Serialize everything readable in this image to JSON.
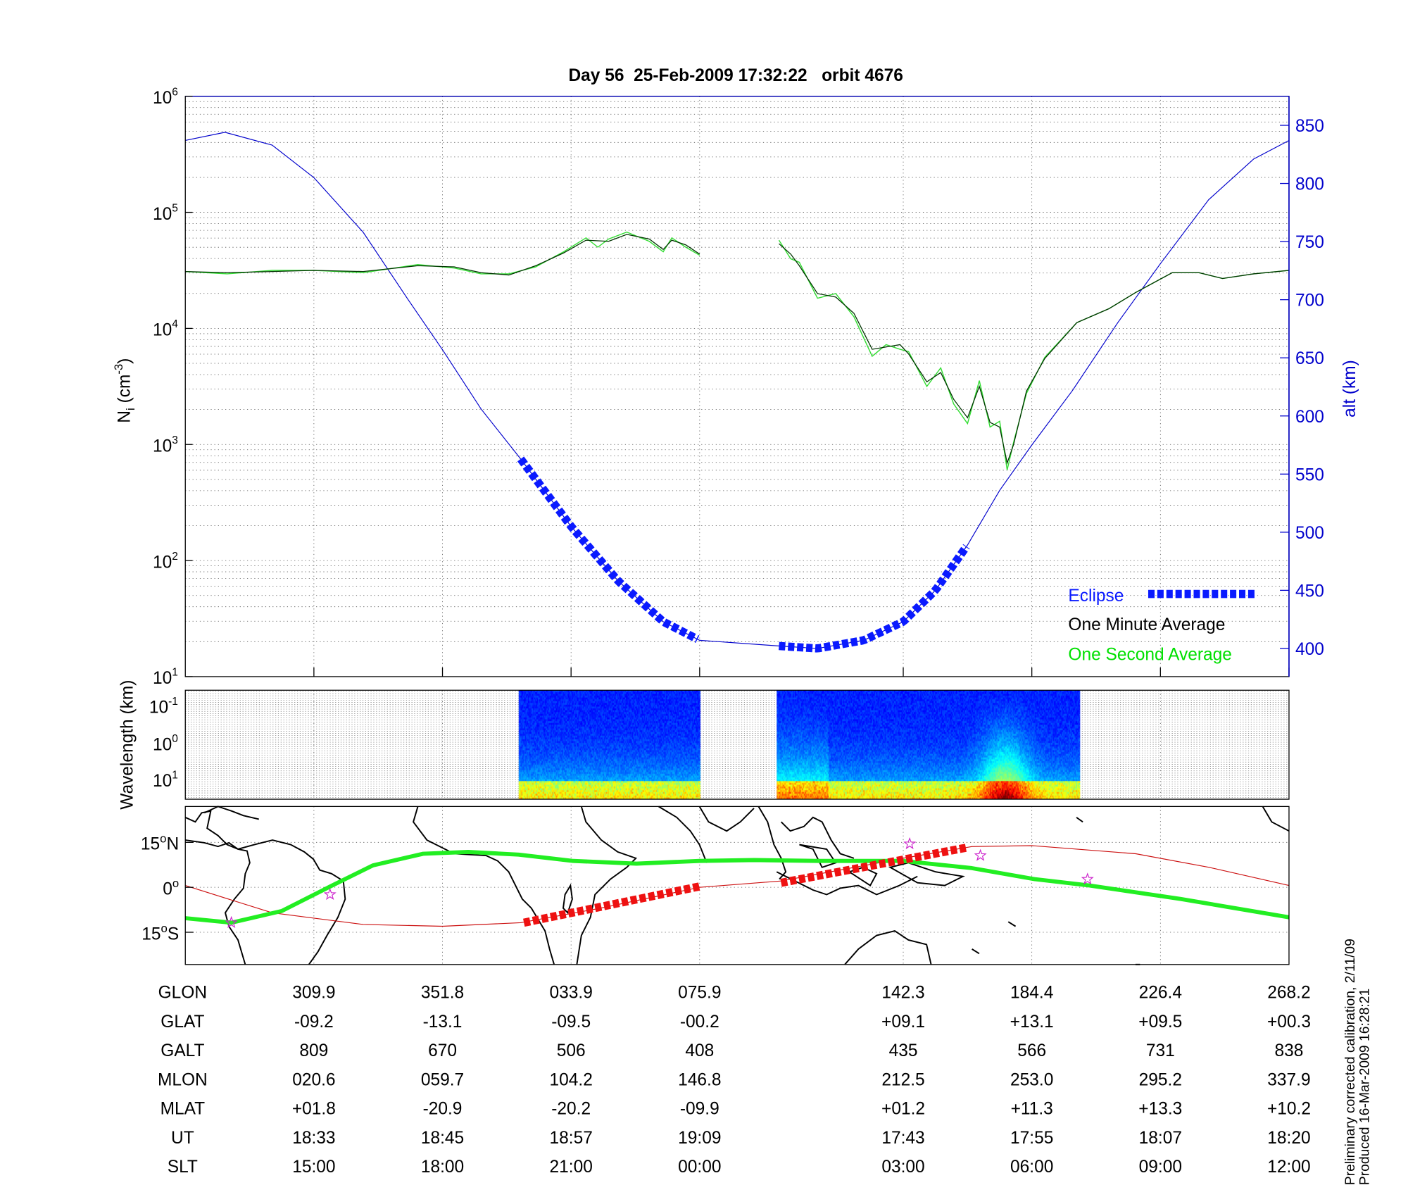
{
  "chart_data": [
    {
      "type": "line",
      "title": "Day 56  25-Feb-2009 17:32:22   orbit 4676",
      "xlabel": "",
      "x_units": "minutes along plotted orbit",
      "xlim": [
        0,
        103
      ],
      "ylabel": {
        "base": "N",
        "sub": "i",
        "mid": " (cm",
        "sup": "-3",
        "end": ")"
      },
      "y_scale": "log",
      "ylim_log10": [
        1,
        6
      ],
      "yticks": [
        {
          "base": "10",
          "exp": "6",
          "v": 6
        },
        {
          "base": "10",
          "exp": "5",
          "v": 5
        },
        {
          "base": "10",
          "exp": "4",
          "v": 4
        },
        {
          "base": "10",
          "exp": "3",
          "v": 3
        },
        {
          "base": "10",
          "exp": "2",
          "v": 2
        },
        {
          "base": "10",
          "exp": "1",
          "v": 1
        }
      ],
      "y2label": "alt (km)",
      "y2lim": [
        375,
        875
      ],
      "y2ticks": [
        "400",
        "450",
        "500",
        "550",
        "600",
        "650",
        "700",
        "750",
        "800",
        "850"
      ],
      "grid": true,
      "legend": {
        "placement": "bottom-right",
        "entries": [
          {
            "label": "Eclipse",
            "color": "#0a1aff"
          },
          {
            "label": "One Minute Average",
            "color": "#000000"
          },
          {
            "label": "One Second Average",
            "color": "#00e000"
          }
        ]
      },
      "series": [
        {
          "name": "Altitude",
          "axis": "right",
          "color": "#0000cc",
          "points": [
            [
              0,
              837
            ],
            [
              3.7,
              844
            ],
            [
              8.1,
              833
            ],
            [
              12,
              805
            ],
            [
              16.6,
              758
            ],
            [
              20.8,
              700
            ],
            [
              24,
              657
            ],
            [
              27.6,
              606
            ],
            [
              31.3,
              563
            ],
            [
              36,
              505
            ],
            [
              40.4,
              458
            ],
            [
              44.6,
              423
            ],
            [
              48,
              407
            ],
            [
              55.6,
              402
            ],
            [
              59,
              400
            ],
            [
              63.3,
              407
            ],
            [
              67,
              423
            ],
            [
              70,
              450
            ],
            [
              73,
              489
            ],
            [
              76,
              536
            ],
            [
              79,
              575
            ],
            [
              82.8,
              622
            ],
            [
              87,
              680
            ],
            [
              91,
              731
            ],
            [
              95.5,
              786
            ],
            [
              99.7,
              821
            ],
            [
              103,
              837
            ]
          ]
        },
        {
          "name": "One Minute Average",
          "axis": "left",
          "color": "#003300",
          "segments": [
            [
              [
                0,
                4.49
              ],
              [
                3.9,
                4.48
              ],
              [
                8.1,
                4.49
              ],
              [
                12,
                4.5
              ],
              [
                16.6,
                4.49
              ],
              [
                21.7,
                4.54
              ],
              [
                25.1,
                4.53
              ],
              [
                27.6,
                4.48
              ],
              [
                30.2,
                4.46
              ],
              [
                32.7,
                4.54
              ],
              [
                35.3,
                4.65
              ],
              [
                37.4,
                4.76
              ],
              [
                39.5,
                4.75
              ],
              [
                41.2,
                4.81
              ],
              [
                43.3,
                4.77
              ],
              [
                44.6,
                4.68
              ],
              [
                45.4,
                4.76
              ],
              [
                46.7,
                4.72
              ],
              [
                48,
                4.64
              ]
            ],
            [
              [
                55.4,
                4.73
              ],
              [
                56.5,
                4.64
              ],
              [
                57.3,
                4.54
              ],
              [
                59,
                4.3
              ],
              [
                60.7,
                4.27
              ],
              [
                62.4,
                4.13
              ],
              [
                64.1,
                3.82
              ],
              [
                65.4,
                3.84
              ],
              [
                66.7,
                3.86
              ],
              [
                67.5,
                3.78
              ],
              [
                69.2,
                3.54
              ],
              [
                70.5,
                3.62
              ],
              [
                71.7,
                3.39
              ],
              [
                73,
                3.23
              ],
              [
                74.1,
                3.5
              ],
              [
                75.1,
                3.19
              ],
              [
                76,
                3.15
              ],
              [
                76.7,
                2.84
              ],
              [
                77.3,
                3.0
              ],
              [
                78.5,
                3.46
              ],
              [
                80.2,
                3.74
              ],
              [
                83.2,
                4.05
              ],
              [
                86.2,
                4.17
              ],
              [
                88.7,
                4.31
              ],
              [
                92.1,
                4.48
              ],
              [
                94.6,
                4.48
              ],
              [
                96.8,
                4.43
              ],
              [
                99.7,
                4.47
              ],
              [
                103,
                4.5
              ]
            ]
          ]
        },
        {
          "name": "One Second Average",
          "axis": "left",
          "color": "#33dd33",
          "segments": [
            [
              [
                0,
                4.49
              ],
              [
                3.9,
                4.47
              ],
              [
                8.1,
                4.5
              ],
              [
                12,
                4.5
              ],
              [
                16.6,
                4.48
              ],
              [
                21.7,
                4.55
              ],
              [
                25.1,
                4.52
              ],
              [
                27.6,
                4.47
              ],
              [
                30.2,
                4.47
              ],
              [
                32.7,
                4.53
              ],
              [
                35.3,
                4.66
              ],
              [
                37.4,
                4.78
              ],
              [
                38.5,
                4.7
              ],
              [
                39.5,
                4.77
              ],
              [
                41.2,
                4.83
              ],
              [
                43.3,
                4.75
              ],
              [
                44.6,
                4.66
              ],
              [
                45.4,
                4.78
              ],
              [
                46.7,
                4.7
              ],
              [
                48,
                4.63
              ]
            ],
            [
              [
                55.4,
                4.76
              ],
              [
                56.5,
                4.6
              ],
              [
                57.3,
                4.57
              ],
              [
                59,
                4.26
              ],
              [
                60.7,
                4.3
              ],
              [
                62.4,
                4.1
              ],
              [
                64.1,
                3.76
              ],
              [
                65.4,
                3.86
              ],
              [
                66.7,
                3.82
              ],
              [
                67.5,
                3.8
              ],
              [
                69.2,
                3.5
              ],
              [
                70.5,
                3.66
              ],
              [
                71.7,
                3.35
              ],
              [
                73,
                3.18
              ],
              [
                74.1,
                3.55
              ],
              [
                75.1,
                3.15
              ],
              [
                76,
                3.2
              ],
              [
                76.7,
                2.78
              ],
              [
                77.3,
                3.02
              ],
              [
                78.5,
                3.44
              ],
              [
                80.2,
                3.75
              ],
              [
                83.2,
                4.05
              ],
              [
                86.2,
                4.17
              ],
              [
                88.7,
                4.31
              ],
              [
                92.1,
                4.48
              ],
              [
                94.6,
                4.48
              ],
              [
                96.8,
                4.43
              ],
              [
                99.7,
                4.47
              ],
              [
                103,
                4.5
              ]
            ]
          ]
        }
      ],
      "eclipse_intervals": [
        [
          31.3,
          48
        ],
        [
          55.4,
          73
        ]
      ]
    },
    {
      "type": "heatmap",
      "ylabel": "Wavelength (km)",
      "y_scale": "log",
      "yticks": [
        {
          "base": "10",
          "exp": "-1"
        },
        {
          "base": "10",
          "exp": "0"
        },
        {
          "base": "10",
          "exp": "1"
        }
      ],
      "data_intervals": [
        [
          31.1,
          48.1
        ],
        [
          55.2,
          83.5
        ]
      ],
      "colormap": "jet"
    },
    {
      "type": "map",
      "lat_ticks": [
        {
          "label": "15",
          "unit": "N",
          "lat": 15
        },
        {
          "label": "0",
          "unit": "",
          "lat": 0
        },
        {
          "label": "15",
          "unit": "S",
          "lat": -15
        }
      ],
      "ground_track": [
        [
          0,
          -10.3
        ],
        [
          4.3,
          -11.8
        ],
        [
          9,
          -7.9
        ],
        [
          13.7,
          0.6
        ],
        [
          17.5,
          7.3
        ],
        [
          22.2,
          11.2
        ],
        [
          26.4,
          11.8
        ],
        [
          31.1,
          10.9
        ],
        [
          36.2,
          8.8
        ],
        [
          42.1,
          7.9
        ],
        [
          48,
          8.8
        ],
        [
          53.1,
          9.1
        ],
        [
          59,
          8.8
        ],
        [
          67,
          8.8
        ],
        [
          73.4,
          6.4
        ],
        [
          79.3,
          2.7
        ],
        [
          84.4,
          0.6
        ],
        [
          92.9,
          -3.9
        ],
        [
          103,
          -10
        ]
      ],
      "magnetic_equator": [
        [
          0,
          0.6
        ],
        [
          8.1,
          -8.5
        ],
        [
          16.6,
          -12.4
        ],
        [
          24,
          -13
        ],
        [
          31.3,
          -11.8
        ],
        [
          38.7,
          -7
        ],
        [
          48,
          0
        ],
        [
          55.6,
          2.1
        ],
        [
          67,
          9.7
        ],
        [
          73.4,
          13.6
        ],
        [
          79,
          13.9
        ],
        [
          88.7,
          11.2
        ],
        [
          95.5,
          6.7
        ],
        [
          103,
          0.6
        ]
      ],
      "eclipse_segments": [
        [
          [
            31.6,
            -11.8
          ],
          [
            48,
            0.3
          ]
        ],
        [
          [
            55.6,
            1.5
          ],
          [
            73,
            13.3
          ]
        ]
      ],
      "stars": [
        [
          4.3,
          -11.8
        ],
        [
          13.5,
          -2.4
        ],
        [
          67.6,
          14.5
        ],
        [
          74.2,
          10.6
        ],
        [
          84.2,
          2.7
        ]
      ]
    }
  ],
  "table": {
    "row_labels": [
      "GLON",
      "GLAT",
      "GALT",
      "MLON",
      "MLAT",
      "UT",
      "SLT"
    ],
    "tick_minutes": [
      12,
      24,
      36,
      48,
      67,
      79,
      91,
      103
    ],
    "columns": [
      [
        "309.9",
        "-09.2",
        "809",
        "020.6",
        "+01.8",
        "18:33",
        "15:00"
      ],
      [
        "351.8",
        "-13.1",
        "670",
        "059.7",
        "-20.9",
        "18:45",
        "18:00"
      ],
      [
        "033.9",
        "-09.5",
        "506",
        "104.2",
        "-20.2",
        "18:57",
        "21:00"
      ],
      [
        "075.9",
        "-00.2",
        "408",
        "146.8",
        "-09.9",
        "19:09",
        "00:00"
      ],
      [
        "142.3",
        "+09.1",
        "435",
        "212.5",
        "+01.2",
        "17:43",
        "03:00"
      ],
      [
        "184.4",
        "+13.1",
        "566",
        "253.0",
        "+11.3",
        "17:55",
        "06:00"
      ],
      [
        "226.4",
        "+09.5",
        "731",
        "295.2",
        "+13.3",
        "18:07",
        "09:00"
      ],
      [
        "268.2",
        "+00.3",
        "838",
        "337.9",
        "+10.2",
        "18:20",
        "12:00"
      ]
    ]
  },
  "footer": {
    "line1": "Preliminary corrected calibration, 2/11/09",
    "line2": "Produced 16-Mar-2009 16:28:21"
  }
}
